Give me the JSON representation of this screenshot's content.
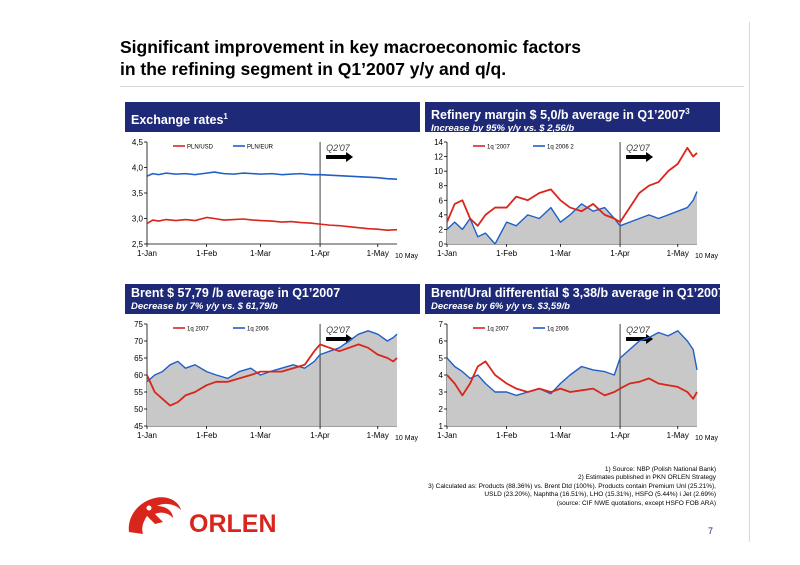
{
  "slide": {
    "title_line1": "Significant improvement in key macroeconomic factors",
    "title_line2": "in the refining segment in Q1’2007 y/y and q/q.",
    "page_number": "7",
    "logo_text": "ORLEN",
    "colors": {
      "header_blue": "#1e2a78",
      "red": "#d8261c",
      "blue": "#1e5fc8",
      "area_gray": "#c8c8c8"
    }
  },
  "panels": {
    "exchange": {
      "title": "Exchange rates",
      "sup": "1"
    },
    "margin": {
      "title": "Refinery margin $ 5,0/b average in Q1’2007",
      "sup": "3",
      "subtitle": "Increase by 95% y/y vs. $ 2,56/b"
    },
    "brent": {
      "title": "Brent  $ 57,79 /b  average in Q1’2007",
      "subtitle": "Decrease by 7%  y/y vs. $ 61,79/b"
    },
    "ural": {
      "title": "Brent/Ural differential $ 3,38/b average in Q1’2007",
      "subtitle": "Decrease by 6% y/y vs. $3,59/b"
    }
  },
  "footnotes": [
    "1) Source: NBP (Polish National Bank)",
    "2) Estimates published in PKN ORLEN Strategy",
    "3) Calculated as: Products (88.36%) vs. Brent Dtd (100%). Products contain Premium Unl (25.21%),",
    "USLD (23.20%),  Naphtha (16.51%), LHO (15.31%), HSFO (5.44%) i Jet (2.69%)",
    "(source: CIF NWE quotations, except HSFO FOB ARA)"
  ],
  "chart_data": [
    {
      "id": "exchange",
      "type": "line",
      "x_tick_labels": [
        "1-Jan",
        "1-Feb",
        "1-Mar",
        "1-Apr",
        "1-May"
      ],
      "x_end_label": "10 May",
      "ylim": [
        2.5,
        4.5
      ],
      "y_tick_labels": [
        "2,5",
        "3,0",
        "3,5",
        "4,0",
        "4,5"
      ],
      "y_ticks": [
        2.5,
        3.0,
        3.5,
        4.0,
        4.5
      ],
      "divider_x": 90,
      "divider_label": "Q2'07",
      "legend": [
        "PLN/USD",
        "PLN/EUR"
      ],
      "series": [
        {
          "name": "PLN/EUR",
          "color": "#1e5fc8",
          "width": 1.6,
          "x": [
            0,
            3,
            6,
            10,
            15,
            20,
            25,
            31,
            35,
            40,
            45,
            50,
            55,
            59,
            65,
            70,
            75,
            80,
            85,
            90,
            95,
            100,
            105,
            110,
            115,
            120,
            125,
            130
          ],
          "y": [
            3.83,
            3.88,
            3.86,
            3.89,
            3.87,
            3.88,
            3.86,
            3.89,
            3.91,
            3.88,
            3.87,
            3.89,
            3.88,
            3.87,
            3.88,
            3.86,
            3.87,
            3.88,
            3.86,
            3.86,
            3.85,
            3.84,
            3.83,
            3.82,
            3.81,
            3.8,
            3.78,
            3.77
          ]
        },
        {
          "name": "PLN/USD",
          "color": "#d8261c",
          "width": 1.6,
          "x": [
            0,
            3,
            6,
            10,
            15,
            20,
            25,
            31,
            35,
            40,
            45,
            50,
            55,
            59,
            65,
            70,
            75,
            80,
            85,
            90,
            95,
            100,
            105,
            110,
            115,
            120,
            125,
            130
          ],
          "y": [
            2.9,
            2.97,
            2.95,
            2.98,
            2.96,
            2.98,
            2.96,
            3.02,
            3.0,
            2.97,
            2.98,
            2.99,
            2.97,
            2.96,
            2.95,
            2.93,
            2.94,
            2.92,
            2.91,
            2.89,
            2.87,
            2.86,
            2.84,
            2.82,
            2.8,
            2.79,
            2.77,
            2.78
          ]
        }
      ]
    },
    {
      "id": "margin",
      "type": "line",
      "x_tick_labels": [
        "1-Jan",
        "1-Feb",
        "1-Mar",
        "1-Apr",
        "1-May"
      ],
      "x_end_label": "10 May",
      "ylim": [
        0,
        14
      ],
      "y_tick_labels": [
        "0",
        "2",
        "4",
        "6",
        "8",
        "10",
        "12",
        "14"
      ],
      "y_ticks": [
        0,
        2,
        4,
        6,
        8,
        10,
        12,
        14
      ],
      "divider_x": 90,
      "divider_label": "Q2'07",
      "legend": [
        "1q '2007",
        "1q 2006 2"
      ],
      "series": [
        {
          "name": "1q 2006 2",
          "color": "#1e5fc8",
          "width": 1.4,
          "area": true,
          "x": [
            0,
            4,
            8,
            12,
            16,
            20,
            25,
            31,
            36,
            42,
            48,
            54,
            59,
            64,
            70,
            76,
            82,
            87,
            90,
            95,
            100,
            105,
            110,
            115,
            120,
            125,
            128,
            130
          ],
          "y": [
            2.0,
            3.0,
            2.0,
            3.5,
            1.0,
            1.5,
            0.0,
            3.0,
            2.5,
            4.0,
            3.5,
            5.0,
            3.0,
            4.0,
            5.5,
            4.5,
            5.0,
            3.5,
            2.5,
            3.0,
            3.5,
            4.0,
            3.5,
            4.0,
            4.5,
            5.0,
            6.0,
            7.2
          ]
        },
        {
          "name": "1q '2007",
          "color": "#d8261c",
          "width": 1.8,
          "x": [
            0,
            4,
            8,
            12,
            16,
            20,
            25,
            31,
            36,
            42,
            48,
            54,
            59,
            64,
            70,
            76,
            82,
            87,
            90,
            95,
            100,
            105,
            110,
            115,
            120,
            125,
            128,
            130
          ],
          "y": [
            3.0,
            5.5,
            6.0,
            3.5,
            2.5,
            4.0,
            5.0,
            5.0,
            6.5,
            6.0,
            7.0,
            7.5,
            6.0,
            5.0,
            4.5,
            5.5,
            4.0,
            3.5,
            3.0,
            5.0,
            7.0,
            8.0,
            8.5,
            10.0,
            11.0,
            13.2,
            12.0,
            12.5
          ]
        }
      ]
    },
    {
      "id": "brent",
      "type": "line",
      "x_tick_labels": [
        "1-Jan",
        "1-Feb",
        "1-Mar",
        "1-Apr",
        "1-May"
      ],
      "x_end_label": "10 May",
      "ylim": [
        45,
        75
      ],
      "y_tick_labels": [
        "45",
        "50",
        "55",
        "60",
        "65",
        "70",
        "75"
      ],
      "y_ticks": [
        45,
        50,
        55,
        60,
        65,
        70,
        75
      ],
      "divider_x": 90,
      "divider_label": "Q2'07",
      "legend": [
        "1q 2007",
        "1q 2006"
      ],
      "series": [
        {
          "name": "1q 2006",
          "color": "#1e5fc8",
          "width": 1.4,
          "area": true,
          "x": [
            0,
            4,
            8,
            12,
            16,
            20,
            25,
            31,
            36,
            42,
            48,
            54,
            59,
            64,
            70,
            76,
            82,
            87,
            90,
            95,
            100,
            105,
            110,
            115,
            120,
            125,
            128,
            130
          ],
          "y": [
            58,
            60,
            61,
            63,
            64,
            62,
            63,
            61,
            60,
            59,
            61,
            62,
            60,
            61,
            62,
            63,
            62,
            64,
            66,
            67,
            68,
            70,
            72,
            73,
            72,
            70,
            71,
            72
          ]
        },
        {
          "name": "1q 2007",
          "color": "#d8261c",
          "width": 1.8,
          "x": [
            0,
            4,
            8,
            12,
            16,
            20,
            25,
            31,
            36,
            42,
            48,
            54,
            59,
            64,
            70,
            76,
            82,
            87,
            90,
            95,
            100,
            105,
            110,
            115,
            120,
            125,
            128,
            130
          ],
          "y": [
            60,
            55,
            53,
            51,
            52,
            54,
            55,
            57,
            58,
            58,
            59,
            60,
            61,
            61,
            61,
            62,
            63,
            67,
            69,
            68,
            67,
            68,
            69,
            68,
            66,
            65,
            64,
            65
          ]
        }
      ]
    },
    {
      "id": "ural",
      "type": "line",
      "x_tick_labels": [
        "1-Jan",
        "1-Feb",
        "1-Mar",
        "1-Apr",
        "1-May"
      ],
      "x_end_label": "10 May",
      "ylim": [
        1,
        7
      ],
      "y_tick_labels": [
        "1",
        "2",
        "3",
        "4",
        "5",
        "6",
        "7"
      ],
      "y_ticks": [
        1,
        2,
        3,
        4,
        5,
        6,
        7
      ],
      "divider_x": 90,
      "divider_label": "Q2'07",
      "legend": [
        "1q 2007",
        "1q 2006"
      ],
      "series": [
        {
          "name": "1q 2006",
          "color": "#1e5fc8",
          "width": 1.4,
          "area": true,
          "x": [
            0,
            4,
            8,
            12,
            16,
            20,
            25,
            31,
            36,
            42,
            48,
            54,
            59,
            64,
            70,
            76,
            82,
            87,
            90,
            95,
            100,
            105,
            110,
            115,
            120,
            125,
            128,
            130
          ],
          "y": [
            5.0,
            4.5,
            4.2,
            3.8,
            4.0,
            3.5,
            3.0,
            3.0,
            2.8,
            3.0,
            3.2,
            2.9,
            3.5,
            4.0,
            4.5,
            4.3,
            4.2,
            4.0,
            5.0,
            5.5,
            6.0,
            6.2,
            6.5,
            6.3,
            6.6,
            6.0,
            5.5,
            4.3
          ]
        },
        {
          "name": "1q 2007",
          "color": "#d8261c",
          "width": 1.8,
          "x": [
            0,
            4,
            8,
            12,
            16,
            20,
            25,
            31,
            36,
            42,
            48,
            54,
            59,
            64,
            70,
            76,
            82,
            87,
            90,
            95,
            100,
            105,
            110,
            115,
            120,
            125,
            128,
            130
          ],
          "y": [
            4.0,
            3.5,
            2.8,
            3.5,
            4.5,
            4.8,
            4.0,
            3.5,
            3.2,
            3.0,
            3.2,
            3.0,
            3.2,
            3.0,
            3.1,
            3.2,
            2.8,
            3.0,
            3.2,
            3.5,
            3.6,
            3.8,
            3.5,
            3.4,
            3.3,
            3.0,
            2.6,
            3.0
          ]
        }
      ]
    }
  ]
}
